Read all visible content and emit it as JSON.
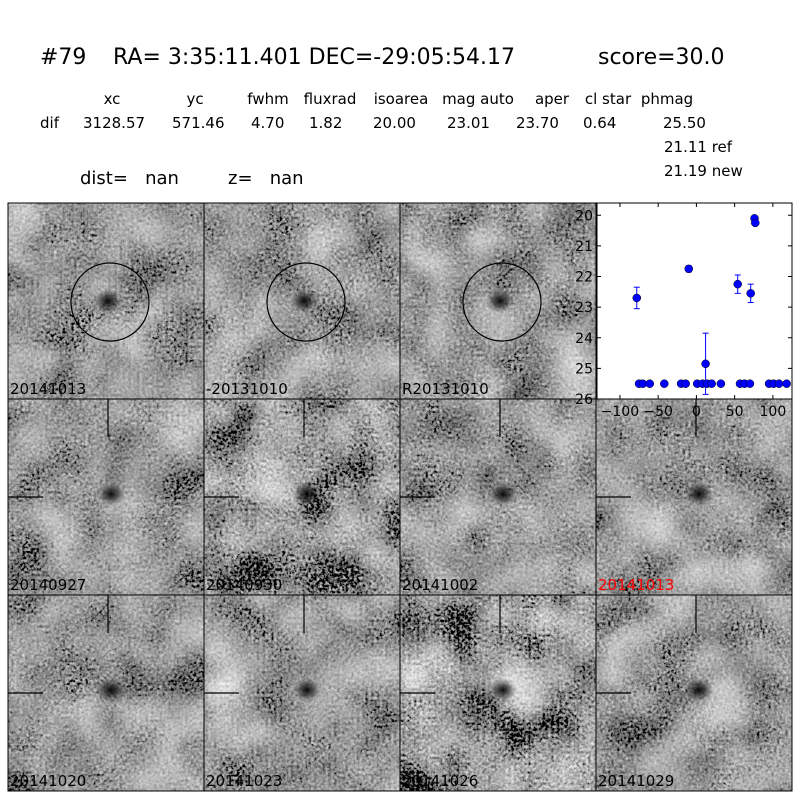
{
  "header": {
    "id": "#79",
    "coords": "RA= 3:35:11.401 DEC=-29:05:54.17",
    "score": "score=30.0"
  },
  "table": {
    "columns": [
      "xc",
      "yc",
      "fwhm",
      "fluxrad",
      "isoarea",
      "mag auto",
      "aper",
      "cl star",
      "phmag"
    ],
    "rows": [
      [
        "dif",
        "3128.57",
        "571.46",
        "4.70",
        "1.82",
        "20.00",
        "23.01",
        "23.70",
        "0.64",
        "25.50"
      ]
    ],
    "extra": [
      "21.11 ref",
      "21.19 new"
    ]
  },
  "dist": "dist=   nan",
  "z": "z=   nan",
  "panels": [
    {
      "label": "20141013",
      "color": "#000000",
      "marker": "circle"
    },
    {
      "label": "-20131010",
      "color": "#000000",
      "marker": "circle"
    },
    {
      "label": "R20131010",
      "color": "#000000",
      "marker": "circle"
    },
    {
      "label": "20140927",
      "color": "#000000",
      "marker": "cross"
    },
    {
      "label": "20140930",
      "color": "#000000",
      "marker": "cross"
    },
    {
      "label": "20141002",
      "color": "#000000",
      "marker": "cross"
    },
    {
      "label": "20141013",
      "color": "#ff0000",
      "marker": "cross"
    },
    {
      "label": "20141020",
      "color": "#000000",
      "marker": "cross"
    },
    {
      "label": "20141023",
      "color": "#000000",
      "marker": "cross"
    },
    {
      "label": "20141026",
      "color": "#000000",
      "marker": "cross"
    },
    {
      "label": "20141029",
      "color": "#000000",
      "marker": "cross"
    }
  ],
  "chart_data": {
    "type": "scatter",
    "xlim": [
      -130,
      125
    ],
    "ylim": [
      26,
      19.6
    ],
    "xticks": [
      {
        "value": -100,
        "label": "−100"
      },
      {
        "value": -50,
        "label": "−50"
      },
      0,
      50,
      100
    ],
    "yticks": [
      20,
      21,
      22,
      23,
      24,
      25,
      26
    ],
    "series": [
      {
        "color": "#0000ff",
        "x": [
          -78,
          -75,
          -70,
          -61,
          -42,
          -20,
          -14,
          -10,
          1,
          8,
          12,
          14,
          20,
          32,
          54,
          57,
          63,
          70,
          71,
          76,
          77,
          95,
          101,
          108,
          118
        ],
        "values": [
          22.7,
          25.5,
          25.5,
          25.5,
          25.5,
          25.5,
          25.5,
          21.75,
          25.5,
          25.5,
          24.85,
          25.5,
          25.5,
          25.5,
          22.25,
          25.5,
          25.5,
          25.5,
          22.55,
          20.1,
          20.25,
          25.5,
          25.5,
          25.5,
          25.5
        ],
        "errors": [
          0.35,
          null,
          null,
          null,
          null,
          null,
          null,
          0.1,
          null,
          null,
          1.0,
          null,
          null,
          null,
          0.3,
          null,
          null,
          null,
          0.3,
          null,
          null,
          null,
          null,
          null,
          null
        ]
      }
    ]
  }
}
